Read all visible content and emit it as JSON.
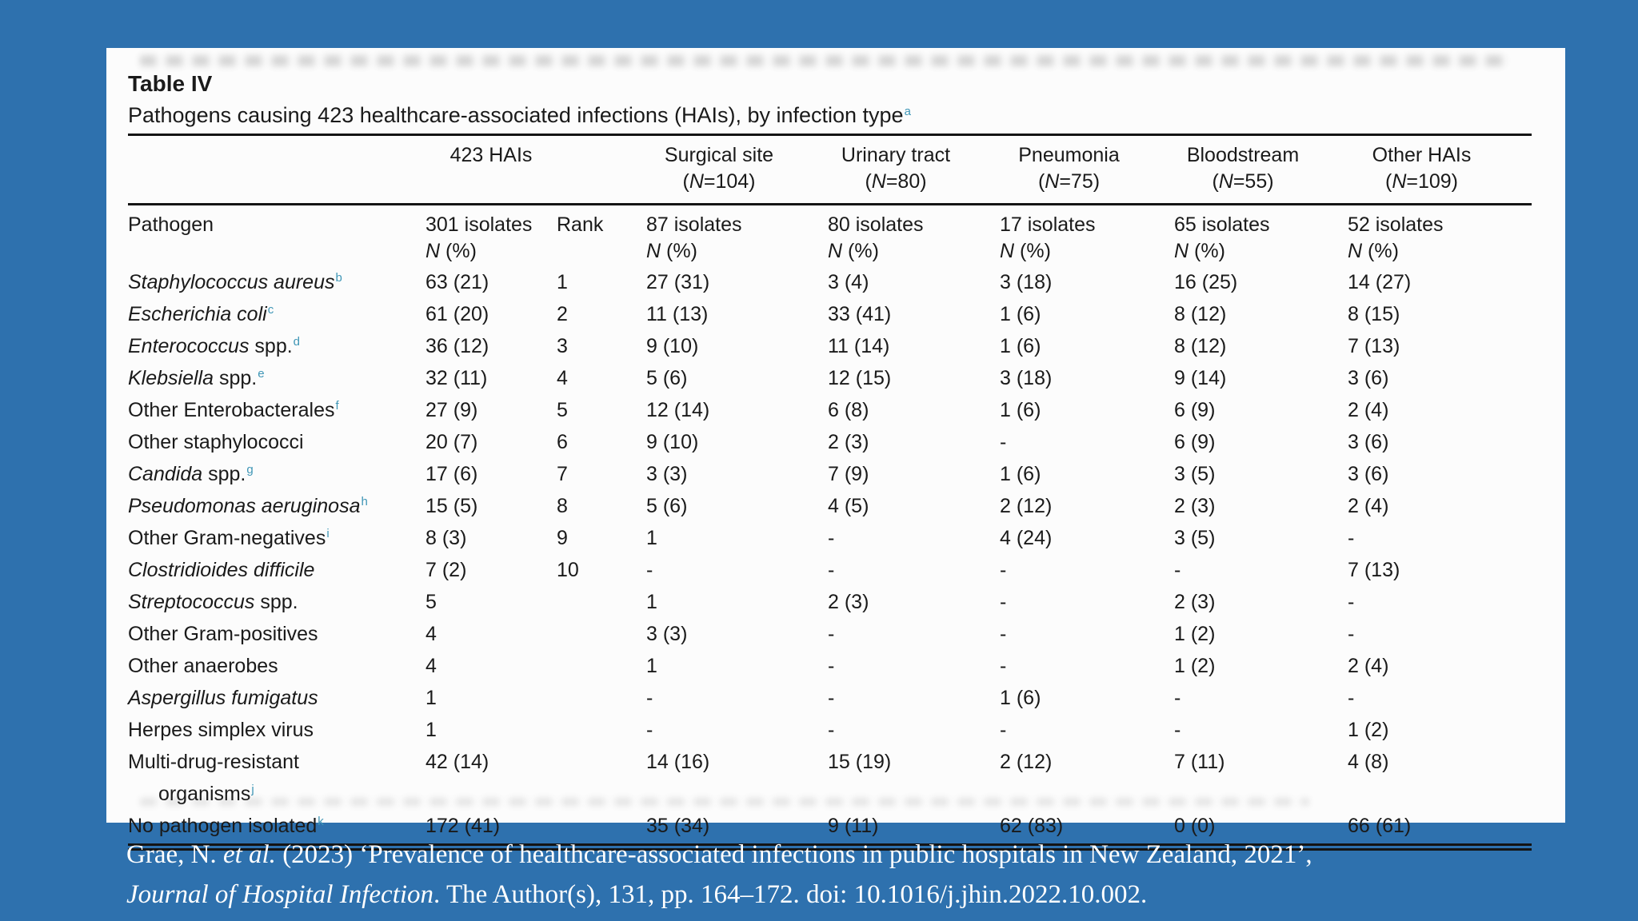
{
  "page": {
    "background_color": "#2e71ae",
    "footnote_marker_color": "#3f96b6"
  },
  "table": {
    "label": "Table IV",
    "caption": "Pathogens causing 423 healthcare-associated infections (HAIs), by infection type",
    "caption_footnote": "a",
    "header": {
      "pathogen": "Pathogen",
      "total": "423 HAIs",
      "rank": "Rank",
      "n_pct": "N (%)",
      "isolates": [
        "301 isolates",
        "87 isolates",
        "80 isolates",
        "17 isolates",
        "65 isolates",
        "52 isolates"
      ],
      "groups": [
        {
          "title": "Surgical site",
          "n": "(N=104)"
        },
        {
          "title": "Urinary tract",
          "n": "(N=80)"
        },
        {
          "title": "Pneumonia",
          "n": "(N=75)"
        },
        {
          "title": "Bloodstream",
          "n": "(N=55)"
        },
        {
          "title": "Other HAIs",
          "n": "(N=109)"
        }
      ]
    },
    "rows": [
      {
        "italic": "Staphylococcus aureus",
        "roman": "",
        "sup": "b",
        "hais": "63 (21)",
        "rank": "1",
        "surgical": "27 (31)",
        "urinary": "3 (4)",
        "pneumonia": "3 (18)",
        "bloodstream": "16 (25)",
        "other": "14 (27)"
      },
      {
        "italic": "Escherichia coli",
        "roman": "",
        "sup": "c",
        "hais": "61 (20)",
        "rank": "2",
        "surgical": "11 (13)",
        "urinary": "33 (41)",
        "pneumonia": "1 (6)",
        "bloodstream": "8 (12)",
        "other": "8 (15)"
      },
      {
        "italic": "Enterococcus",
        "roman": " spp.",
        "sup": "d",
        "hais": "36 (12)",
        "rank": "3",
        "surgical": "9 (10)",
        "urinary": "11 (14)",
        "pneumonia": "1 (6)",
        "bloodstream": "8 (12)",
        "other": "7 (13)"
      },
      {
        "italic": "Klebsiella",
        "roman": " spp.",
        "sup": "e",
        "hais": "32 (11)",
        "rank": "4",
        "surgical": "5 (6)",
        "urinary": "12 (15)",
        "pneumonia": "3 (18)",
        "bloodstream": "9 (14)",
        "other": "3 (6)"
      },
      {
        "italic": "",
        "roman": "Other Enterobacterales",
        "sup": "f",
        "hais": "27 (9)",
        "rank": "5",
        "surgical": "12 (14)",
        "urinary": "6 (8)",
        "pneumonia": "1 (6)",
        "bloodstream": "6 (9)",
        "other": "2 (4)"
      },
      {
        "italic": "",
        "roman": "Other staphylococci",
        "sup": "",
        "hais": "20 (7)",
        "rank": "6",
        "surgical": "9 (10)",
        "urinary": "2 (3)",
        "pneumonia": "-",
        "bloodstream": "6 (9)",
        "other": "3 (6)"
      },
      {
        "italic": "Candida",
        "roman": " spp.",
        "sup": "g",
        "hais": "17 (6)",
        "rank": "7",
        "surgical": "3 (3)",
        "urinary": "7 (9)",
        "pneumonia": "1 (6)",
        "bloodstream": "3 (5)",
        "other": "3 (6)"
      },
      {
        "italic": "Pseudomonas aeruginosa",
        "roman": "",
        "sup": "h",
        "hais": "15 (5)",
        "rank": "8",
        "surgical": "5 (6)",
        "urinary": "4 (5)",
        "pneumonia": "2 (12)",
        "bloodstream": "2 (3)",
        "other": "2 (4)"
      },
      {
        "italic": "",
        "roman": "Other Gram-negatives",
        "sup": "i",
        "hais": "8 (3)",
        "rank": "9",
        "surgical": "1",
        "urinary": "-",
        "pneumonia": "4 (24)",
        "bloodstream": "3 (5)",
        "other": "-"
      },
      {
        "italic": "Clostridioides difficile",
        "roman": "",
        "sup": "",
        "hais": "7 (2)",
        "rank": "10",
        "surgical": "-",
        "urinary": "-",
        "pneumonia": "-",
        "bloodstream": "-",
        "other": "7 (13)"
      },
      {
        "italic": "Streptococcus",
        "roman": " spp.",
        "sup": "",
        "hais": "5",
        "rank": "",
        "surgical": "1",
        "urinary": "2 (3)",
        "pneumonia": "-",
        "bloodstream": "2 (3)",
        "other": "-"
      },
      {
        "italic": "",
        "roman": "Other Gram-positives",
        "sup": "",
        "hais": "4",
        "rank": "",
        "surgical": "3 (3)",
        "urinary": "-",
        "pneumonia": "-",
        "bloodstream": "1 (2)",
        "other": "-"
      },
      {
        "italic": "",
        "roman": "Other anaerobes",
        "sup": "",
        "hais": "4",
        "rank": "",
        "surgical": "1",
        "urinary": "-",
        "pneumonia": "-",
        "bloodstream": "1 (2)",
        "other": "2 (4)"
      },
      {
        "italic": "Aspergillus fumigatus",
        "roman": "",
        "sup": "",
        "hais": "1",
        "rank": "",
        "surgical": "-",
        "urinary": "-",
        "pneumonia": "1 (6)",
        "bloodstream": "-",
        "other": "-"
      },
      {
        "italic": "",
        "roman": "Herpes simplex virus",
        "sup": "",
        "hais": "1",
        "rank": "",
        "surgical": "-",
        "urinary": "-",
        "pneumonia": "-",
        "bloodstream": "-",
        "other": "1 (2)"
      },
      {
        "italic": "",
        "roman": "Multi-drug-resistant",
        "sup": "",
        "line2": "organisms",
        "line2_sup": "j",
        "hais": "42 (14)",
        "rank": "",
        "surgical": "14 (16)",
        "urinary": "15 (19)",
        "pneumonia": "2 (12)",
        "bloodstream": "7 (11)",
        "other": "4 (8)"
      },
      {
        "italic": "",
        "roman": "No pathogen isolated",
        "sup": "k",
        "hais": "172 (41)",
        "rank": "",
        "surgical": "35 (34)",
        "urinary": "9 (11)",
        "pneumonia": "62 (83)",
        "bloodstream": "0 (0)",
        "other": "66 (61)"
      }
    ]
  },
  "citation": {
    "l1_roman1": "Grae, N. ",
    "l1_italic": "et al.",
    "l1_roman2": " (2023) ‘Prevalence of healthcare-associated infections in public hospitals in New Zealand, 2021’,",
    "l2_italic": "Journal of Hospital Infection",
    "l2_roman": ". The Author(s), 131, pp. 164–172. doi: 10.1016/j.jhin.2022.10.002."
  }
}
